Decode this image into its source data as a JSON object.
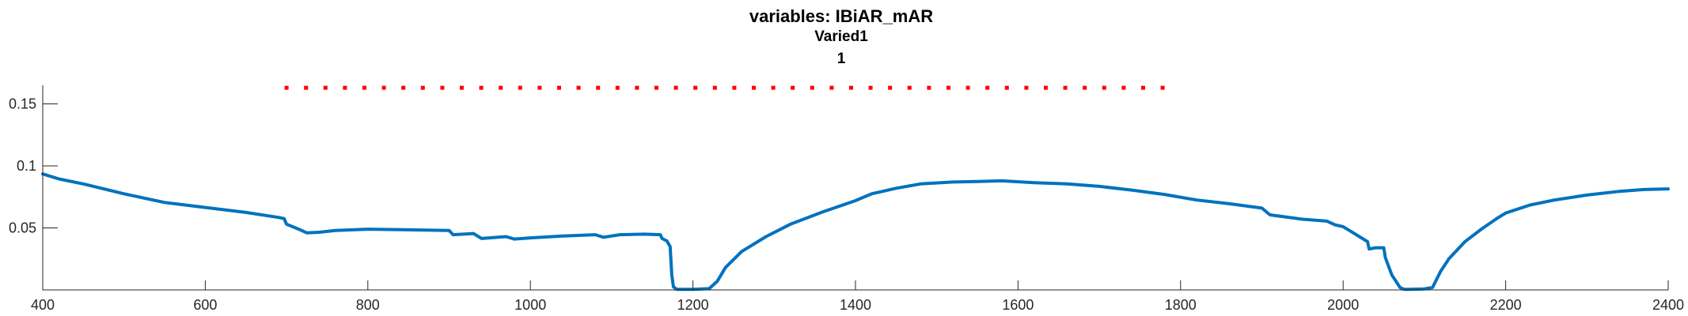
{
  "colors": {
    "line": "#0072BD",
    "marker": "#FF0000",
    "axis": "#262626",
    "background": "#FFFFFF"
  },
  "chart_data": {
    "type": "line",
    "title": "variables: IBiAR_mAR",
    "subtitle": [
      "Varied1",
      "1"
    ],
    "xlabel": "",
    "ylabel": "",
    "xlim": [
      400,
      2400
    ],
    "ylim": [
      0,
      0.165
    ],
    "grid": false,
    "legend": "none",
    "x_ticks": [
      400,
      600,
      800,
      1000,
      1200,
      1400,
      1600,
      1800,
      2000,
      2200,
      2400
    ],
    "x_tick_labels": [
      "400",
      "600",
      "800",
      "1000",
      "1200",
      "1400",
      "1600",
      "1800",
      "2000",
      "2200",
      "2400"
    ],
    "y_ticks": [
      0.05,
      0.1,
      0.15
    ],
    "y_tick_labels": [
      "0.05",
      "0.1",
      "0.15"
    ],
    "series": [
      {
        "style": "solid",
        "color": "#0072BD",
        "x": [
          400,
          420,
          450,
          500,
          550,
          600,
          650,
          690,
          697,
          700,
          715,
          725,
          740,
          760,
          800,
          850,
          900,
          905,
          930,
          940,
          970,
          980,
          1000,
          1040,
          1080,
          1090,
          1110,
          1140,
          1160,
          1162,
          1168,
          1172,
          1174,
          1176,
          1180,
          1200,
          1220,
          1230,
          1240,
          1260,
          1290,
          1320,
          1360,
          1400,
          1420,
          1450,
          1480,
          1520,
          1550,
          1580,
          1620,
          1660,
          1700,
          1740,
          1780,
          1820,
          1860,
          1900,
          1910,
          1950,
          1980,
          1990,
          2000,
          2010,
          2020,
          2030,
          2032,
          2040,
          2050,
          2052,
          2060,
          2065,
          2070,
          2075,
          2080,
          2100,
          2110,
          2120,
          2130,
          2150,
          2170,
          2190,
          2200,
          2230,
          2260,
          2300,
          2340,
          2370,
          2400
        ],
        "y": [
          0.0935,
          0.0895,
          0.0855,
          0.0775,
          0.0705,
          0.0665,
          0.0625,
          0.0585,
          0.0575,
          0.053,
          0.049,
          0.046,
          0.0465,
          0.048,
          0.049,
          0.0485,
          0.048,
          0.0445,
          0.0455,
          0.0415,
          0.043,
          0.041,
          0.042,
          0.0435,
          0.0445,
          0.0425,
          0.0445,
          0.045,
          0.0445,
          0.0415,
          0.0395,
          0.035,
          0.012,
          0.0025,
          0.0005,
          0.0005,
          0.001,
          0.007,
          0.018,
          0.031,
          0.043,
          0.053,
          0.063,
          0.072,
          0.0775,
          0.082,
          0.0855,
          0.087,
          0.0875,
          0.088,
          0.0865,
          0.0855,
          0.0835,
          0.0805,
          0.077,
          0.0725,
          0.0695,
          0.066,
          0.0605,
          0.057,
          0.0555,
          0.0525,
          0.051,
          0.047,
          0.043,
          0.039,
          0.033,
          0.034,
          0.034,
          0.026,
          0.012,
          0.007,
          0.002,
          0.0005,
          0.0005,
          0.0008,
          0.002,
          0.015,
          0.025,
          0.039,
          0.049,
          0.058,
          0.062,
          0.0685,
          0.0725,
          0.0765,
          0.0795,
          0.081,
          0.0815
        ]
      },
      {
        "style": "dotted",
        "color": "#FF0000",
        "x": [
          700,
          1785
        ],
        "y": [
          0.163,
          0.163
        ]
      }
    ]
  }
}
